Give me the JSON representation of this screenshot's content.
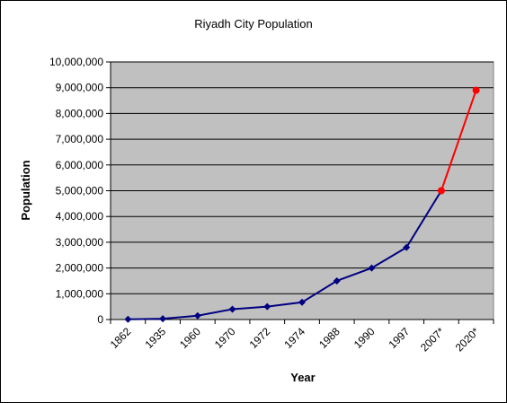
{
  "chart_data": {
    "type": "line",
    "title": "Riyadh City Population",
    "xlabel": "Year",
    "ylabel": "Population",
    "categories": [
      "1862",
      "1935",
      "1960",
      "1970",
      "1972",
      "1974",
      "1988",
      "1990",
      "1997",
      "2007*",
      "2020*"
    ],
    "ylim": [
      0,
      10000000
    ],
    "yticks": [
      "0",
      "1,000,000",
      "2,000,000",
      "3,000,000",
      "4,000,000",
      "5,000,000",
      "6,000,000",
      "7,000,000",
      "8,000,000",
      "9,000,000",
      "10,000,000"
    ],
    "series": [
      {
        "color": "#000080",
        "values": [
          10000,
          30000,
          150000,
          400000,
          500000,
          670000,
          1500000,
          2000000,
          2800000,
          5000000,
          null
        ]
      },
      {
        "color": "#ff0000",
        "values": [
          null,
          null,
          null,
          null,
          null,
          null,
          null,
          null,
          null,
          5000000,
          8900000
        ]
      }
    ],
    "grid": true,
    "legend": "none",
    "plot_background": "#c0c0c0"
  }
}
